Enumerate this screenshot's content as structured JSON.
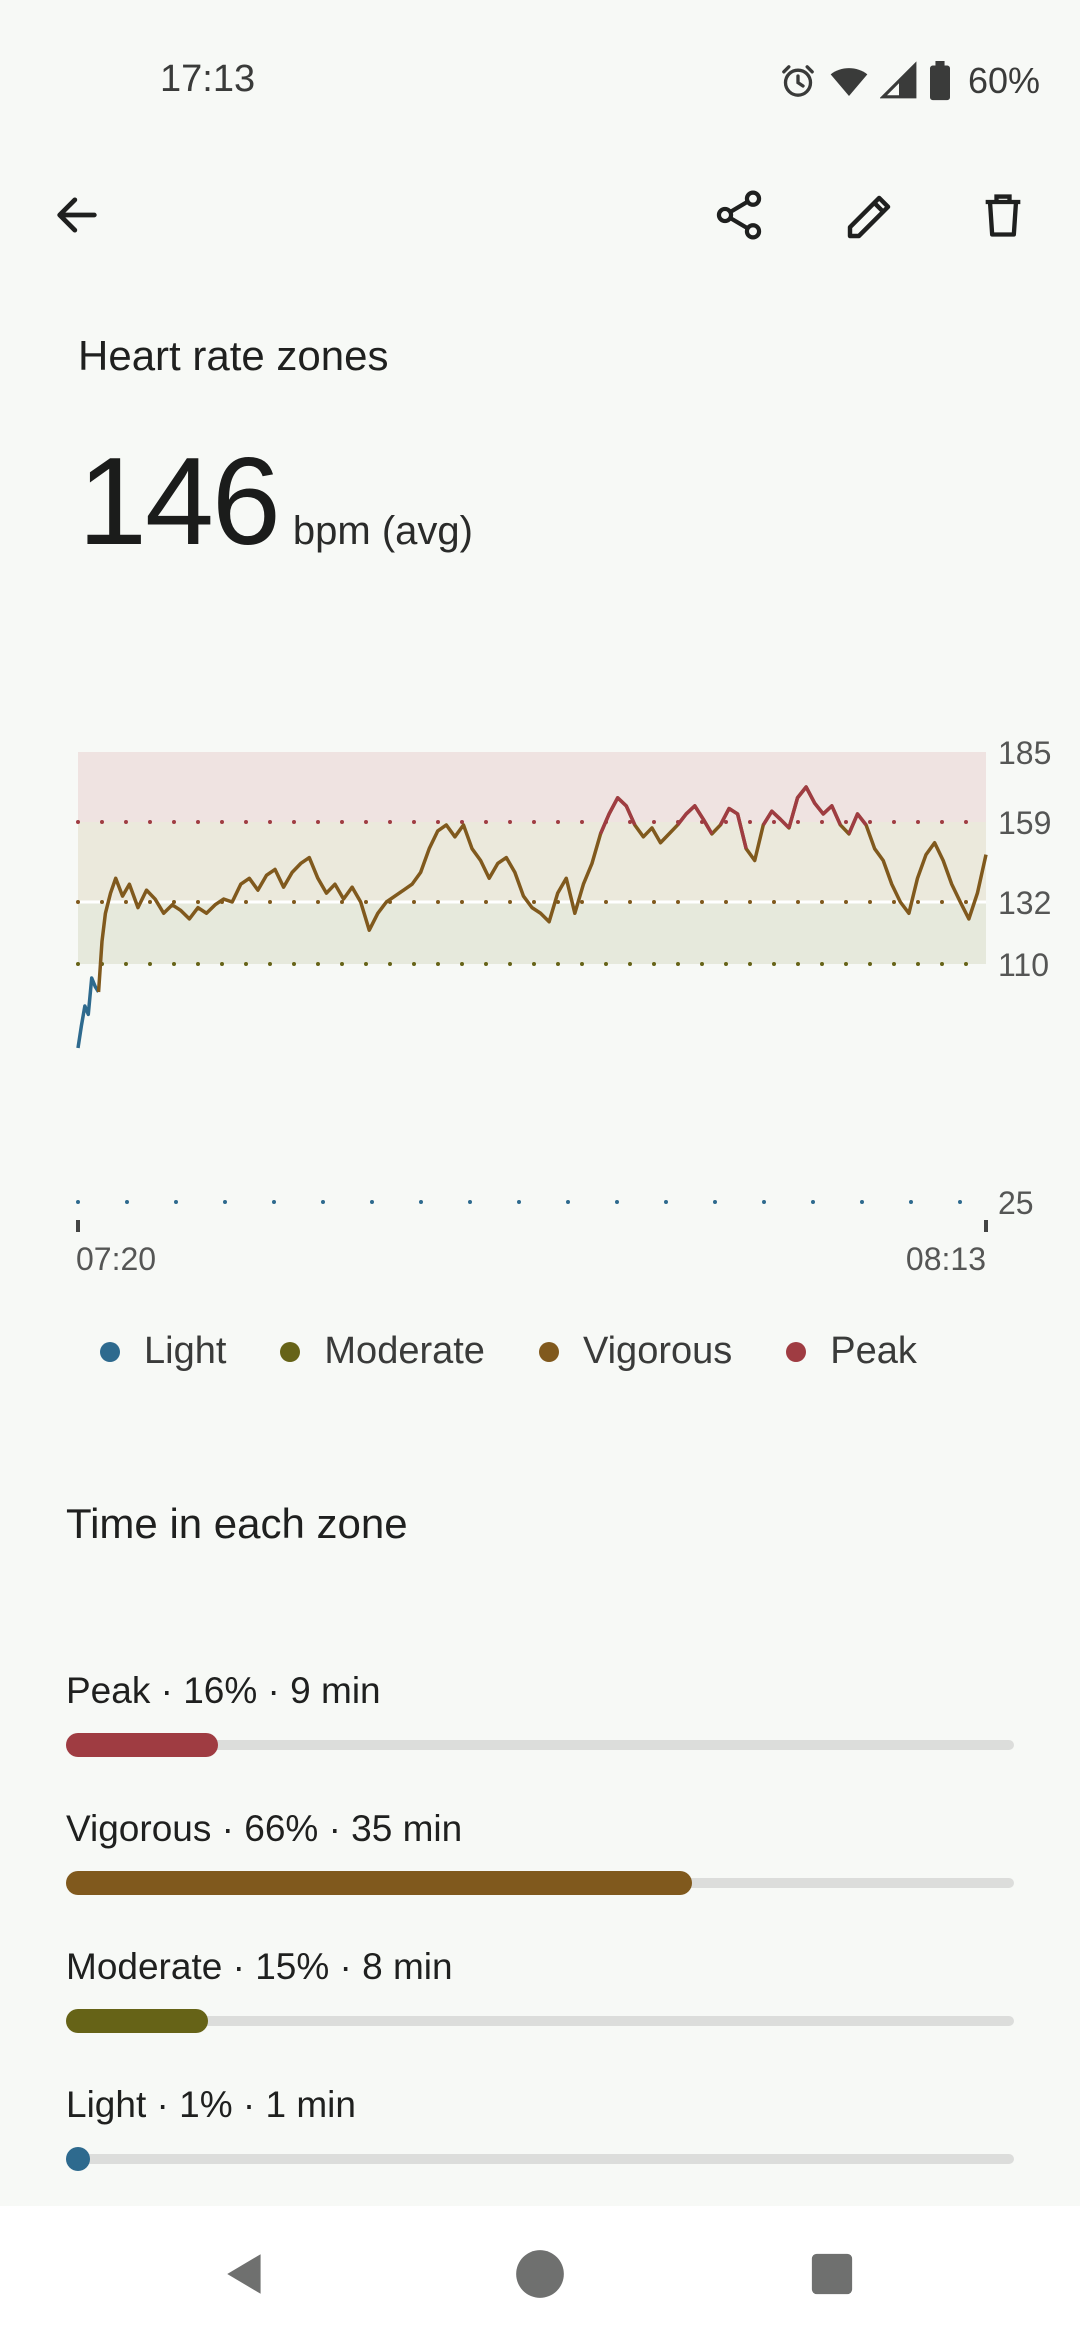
{
  "status": {
    "time": "17:13",
    "battery": "60%",
    "icons": [
      "alarm-icon",
      "wifi-icon",
      "signal-icon",
      "battery-icon"
    ]
  },
  "toolbar": {
    "icons": [
      "back-arrow-icon",
      "share-icon",
      "edit-icon",
      "delete-icon"
    ]
  },
  "page": {
    "title": "Heart rate zones",
    "avg_value": "146",
    "avg_unit": "bpm (avg)"
  },
  "chart_data": {
    "type": "line",
    "y_ticks": [
      "185",
      "159",
      "132",
      "110",
      "25"
    ],
    "x_labels": [
      "07:20",
      "08:13"
    ],
    "zones": [
      {
        "name": "Peak",
        "from": 159,
        "to": 185,
        "color": "#9f3c42"
      },
      {
        "name": "Vigorous",
        "from": 132,
        "to": 159,
        "color": "#80591d"
      },
      {
        "name": "Moderate",
        "from": 110,
        "to": 132,
        "color": "#666317"
      }
    ],
    "light_threshold": 25,
    "series": [
      {
        "values": [
          [
            0,
            80
          ],
          [
            0.2,
            88
          ],
          [
            0.4,
            95
          ],
          [
            0.6,
            92
          ],
          [
            0.8,
            105
          ],
          [
            1,
            102
          ],
          [
            1.2,
            100
          ],
          [
            1.4,
            118
          ],
          [
            1.6,
            128
          ],
          [
            1.9,
            135
          ],
          [
            2.2,
            140
          ],
          [
            2.6,
            134
          ],
          [
            3,
            138
          ],
          [
            3.5,
            130
          ],
          [
            4,
            136
          ],
          [
            4.5,
            133
          ],
          [
            5,
            128
          ],
          [
            5.5,
            131
          ],
          [
            6,
            129
          ],
          [
            6.5,
            126
          ],
          [
            7,
            130
          ],
          [
            7.5,
            128
          ],
          [
            8,
            131
          ],
          [
            8.5,
            133
          ],
          [
            9,
            132
          ],
          [
            9.5,
            138
          ],
          [
            10,
            140
          ],
          [
            10.5,
            136
          ],
          [
            11,
            141
          ],
          [
            11.5,
            143
          ],
          [
            12,
            137
          ],
          [
            12.5,
            142
          ],
          [
            13,
            145
          ],
          [
            13.5,
            147
          ],
          [
            14,
            140
          ],
          [
            14.5,
            135
          ],
          [
            15,
            138
          ],
          [
            15.5,
            133
          ],
          [
            16,
            137
          ],
          [
            16.5,
            132
          ],
          [
            17,
            122
          ],
          [
            17.5,
            128
          ],
          [
            18,
            132
          ],
          [
            18.5,
            134
          ],
          [
            19,
            136
          ],
          [
            19.5,
            138
          ],
          [
            20,
            142
          ],
          [
            20.5,
            150
          ],
          [
            21,
            156
          ],
          [
            21.5,
            158
          ],
          [
            22,
            154
          ],
          [
            22.5,
            158
          ],
          [
            23,
            150
          ],
          [
            23.5,
            146
          ],
          [
            24,
            140
          ],
          [
            24.5,
            145
          ],
          [
            25,
            147
          ],
          [
            25.5,
            142
          ],
          [
            26,
            134
          ],
          [
            26.5,
            130
          ],
          [
            27,
            128
          ],
          [
            27.5,
            125
          ],
          [
            28,
            135
          ],
          [
            28.5,
            140
          ],
          [
            29,
            128
          ],
          [
            29.5,
            138
          ],
          [
            30,
            145
          ],
          [
            30.5,
            155
          ],
          [
            31,
            162
          ],
          [
            31.5,
            168
          ],
          [
            32,
            165
          ],
          [
            32.5,
            158
          ],
          [
            33,
            154
          ],
          [
            33.5,
            157
          ],
          [
            34,
            152
          ],
          [
            34.5,
            155
          ],
          [
            35,
            158
          ],
          [
            35.5,
            162
          ],
          [
            36,
            165
          ],
          [
            36.5,
            160
          ],
          [
            37,
            155
          ],
          [
            37.5,
            158
          ],
          [
            38,
            164
          ],
          [
            38.5,
            162
          ],
          [
            39,
            150
          ],
          [
            39.5,
            146
          ],
          [
            40,
            158
          ],
          [
            40.5,
            163
          ],
          [
            41,
            160
          ],
          [
            41.5,
            157
          ],
          [
            42,
            168
          ],
          [
            42.5,
            172
          ],
          [
            43,
            166
          ],
          [
            43.5,
            162
          ],
          [
            44,
            165
          ],
          [
            44.5,
            158
          ],
          [
            45,
            155
          ],
          [
            45.5,
            162
          ],
          [
            46,
            158
          ],
          [
            46.5,
            150
          ],
          [
            47,
            146
          ],
          [
            47.5,
            138
          ],
          [
            48,
            132
          ],
          [
            48.5,
            128
          ],
          [
            49,
            140
          ],
          [
            49.5,
            148
          ],
          [
            50,
            152
          ],
          [
            50.5,
            146
          ],
          [
            51,
            138
          ],
          [
            51.5,
            132
          ],
          [
            52,
            126
          ],
          [
            52.5,
            135
          ],
          [
            53,
            148
          ]
        ]
      }
    ]
  },
  "legend": [
    {
      "label": "Light",
      "color": "#2e6a8e"
    },
    {
      "label": "Moderate",
      "color": "#666317"
    },
    {
      "label": "Vigorous",
      "color": "#80591d"
    },
    {
      "label": "Peak",
      "color": "#9f3c42"
    }
  ],
  "time_in_zone": {
    "title": "Time in each zone",
    "zones": [
      {
        "label": "Peak · 16% · 9 min",
        "fraction": 0.16,
        "color": "#9f3c42"
      },
      {
        "label": "Vigorous · 66% · 35 min",
        "fraction": 0.66,
        "color": "#80591d"
      },
      {
        "label": "Moderate · 15% · 8 min",
        "fraction": 0.15,
        "color": "#666317"
      },
      {
        "label": "Light · 1% · 1 min",
        "fraction": 0.01,
        "color": "#2e6a8e"
      }
    ]
  },
  "navigation": {
    "icons": [
      "nav-back-icon",
      "nav-home-icon",
      "nav-recents-icon"
    ]
  }
}
